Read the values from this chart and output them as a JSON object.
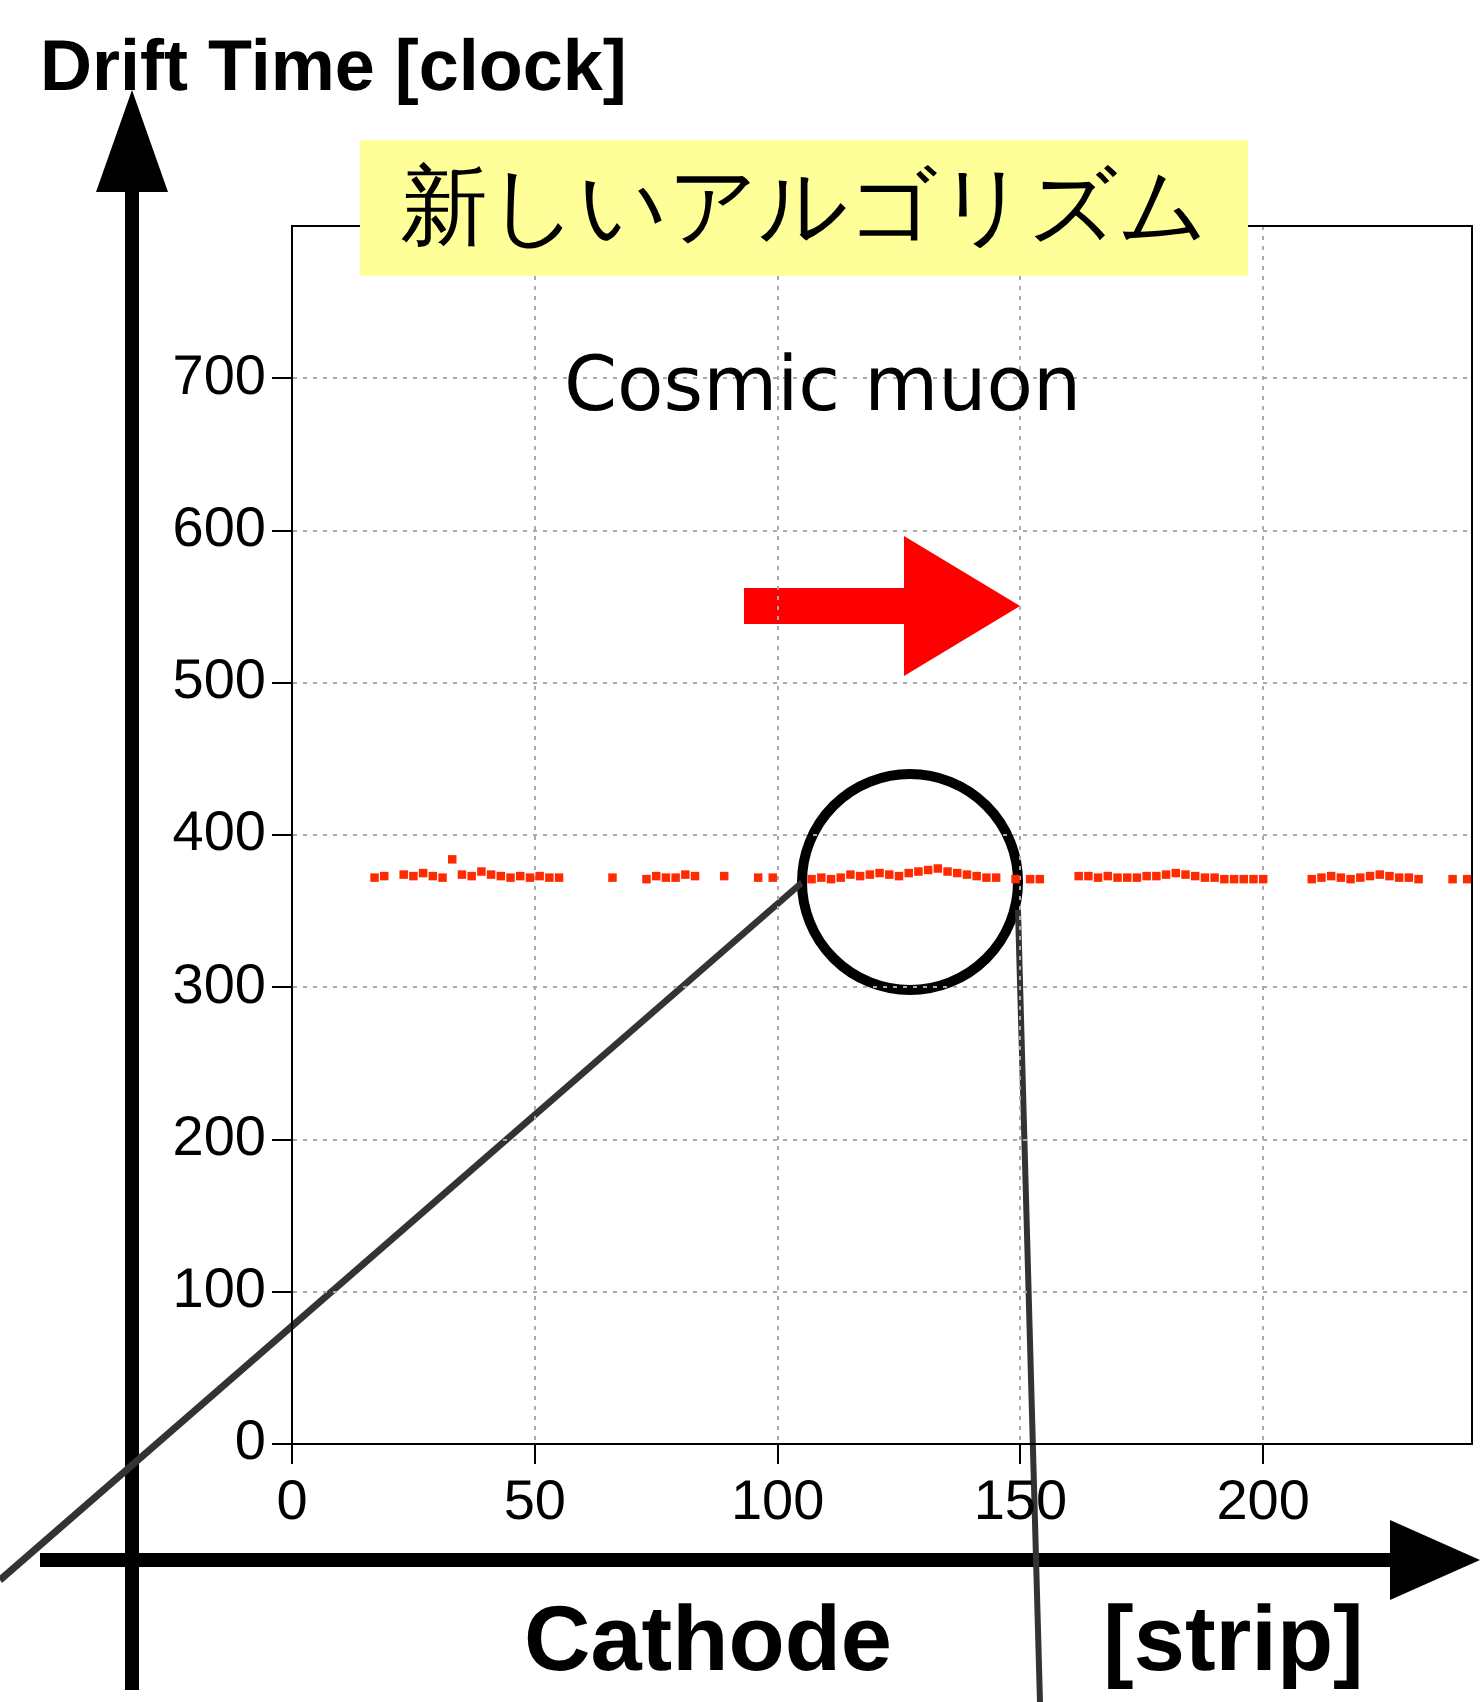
{
  "chart_data": {
    "type": "scatter",
    "title": "新しいアルゴリズム",
    "xlabel": "Cathode  [strip]",
    "ylabel": "Drift Time [clock]",
    "annotations": [
      "Cosmic muon"
    ],
    "xlim": [
      0,
      243
    ],
    "xticks": [
      0,
      50,
      100,
      150,
      200
    ],
    "ylim": [
      0,
      800
    ],
    "yticks": [
      0,
      100,
      200,
      300,
      400,
      500,
      600,
      700
    ],
    "grid": true,
    "legend": false,
    "marker": "square",
    "series": [
      {
        "color": "#ff2a00",
        "x": [
          17,
          19,
          23,
          25,
          27,
          29,
          31,
          33,
          35,
          37,
          39,
          41,
          43,
          45,
          47,
          49,
          51,
          53,
          55,
          66,
          73,
          75,
          77,
          79,
          81,
          83,
          89,
          96,
          99,
          107,
          109,
          111,
          113,
          115,
          117,
          119,
          121,
          123,
          125,
          127,
          129,
          131,
          133,
          135,
          137,
          139,
          141,
          143,
          145,
          149,
          152,
          154,
          162,
          164,
          166,
          168,
          170,
          172,
          174,
          176,
          178,
          180,
          182,
          184,
          186,
          188,
          190,
          192,
          194,
          196,
          198,
          200,
          210,
          212,
          214,
          216,
          218,
          220,
          222,
          224,
          226,
          228,
          230,
          232,
          239,
          242
        ],
        "values": [
          372,
          373,
          374,
          373,
          375,
          373,
          372,
          384,
          374,
          373,
          376,
          374,
          373,
          372,
          373,
          372,
          373,
          372,
          372,
          372,
          371,
          373,
          372,
          372,
          374,
          373,
          373,
          372,
          372,
          371,
          372,
          371,
          372,
          374,
          373,
          374,
          375,
          374,
          373,
          375,
          376,
          377,
          378,
          376,
          375,
          374,
          373,
          372,
          372,
          371,
          371,
          371,
          373,
          373,
          372,
          373,
          372,
          372,
          372,
          373,
          373,
          374,
          375,
          374,
          373,
          372,
          372,
          371,
          371,
          371,
          371,
          371,
          371,
          372,
          373,
          372,
          371,
          372,
          373,
          374,
          373,
          372,
          372,
          371,
          371,
          371
        ]
      }
    ]
  }
}
